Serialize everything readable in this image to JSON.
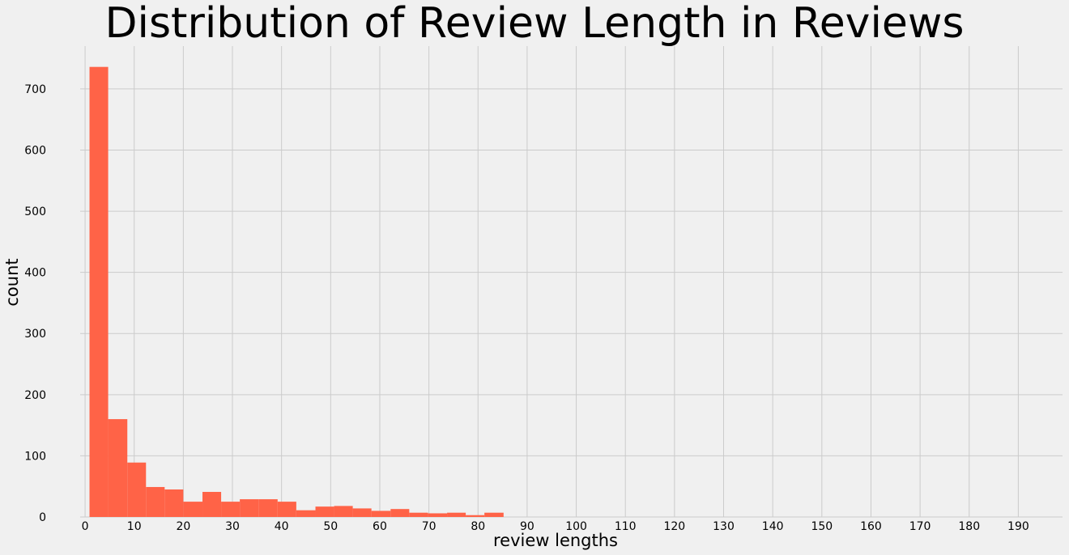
{
  "chart_data": {
    "type": "bar",
    "title": "Distribution of Review Length in Reviews",
    "xlabel": "review lengths",
    "ylabel": "count",
    "xlim": [
      -1,
      199
    ],
    "ylim": [
      0,
      770
    ],
    "xticks": [
      0,
      10,
      20,
      30,
      40,
      50,
      60,
      70,
      80,
      90,
      100,
      110,
      120,
      130,
      140,
      150,
      160,
      170,
      180,
      190
    ],
    "yticks": [
      0,
      100,
      200,
      300,
      400,
      500,
      600,
      700
    ],
    "grid": true,
    "bar_color": "#ff6347",
    "bins": [
      {
        "start": 0.9,
        "end": 4.7,
        "value": 736
      },
      {
        "start": 4.7,
        "end": 8.6,
        "value": 160
      },
      {
        "start": 8.6,
        "end": 12.4,
        "value": 89
      },
      {
        "start": 12.4,
        "end": 16.2,
        "value": 49
      },
      {
        "start": 16.2,
        "end": 20.0,
        "value": 45
      },
      {
        "start": 20.0,
        "end": 23.9,
        "value": 25
      },
      {
        "start": 23.9,
        "end": 27.7,
        "value": 41
      },
      {
        "start": 27.7,
        "end": 31.5,
        "value": 25
      },
      {
        "start": 31.5,
        "end": 35.4,
        "value": 29
      },
      {
        "start": 35.4,
        "end": 39.2,
        "value": 29
      },
      {
        "start": 39.2,
        "end": 43.0,
        "value": 25
      },
      {
        "start": 43.0,
        "end": 46.9,
        "value": 11
      },
      {
        "start": 46.9,
        "end": 50.7,
        "value": 17
      },
      {
        "start": 50.7,
        "end": 54.5,
        "value": 18
      },
      {
        "start": 54.5,
        "end": 58.3,
        "value": 14
      },
      {
        "start": 58.3,
        "end": 62.2,
        "value": 10
      },
      {
        "start": 62.2,
        "end": 66.0,
        "value": 13
      },
      {
        "start": 66.0,
        "end": 69.8,
        "value": 7
      },
      {
        "start": 69.8,
        "end": 73.7,
        "value": 6
      },
      {
        "start": 73.7,
        "end": 77.5,
        "value": 7
      },
      {
        "start": 77.5,
        "end": 81.3,
        "value": 3
      },
      {
        "start": 81.3,
        "end": 85.2,
        "value": 7
      }
    ]
  }
}
